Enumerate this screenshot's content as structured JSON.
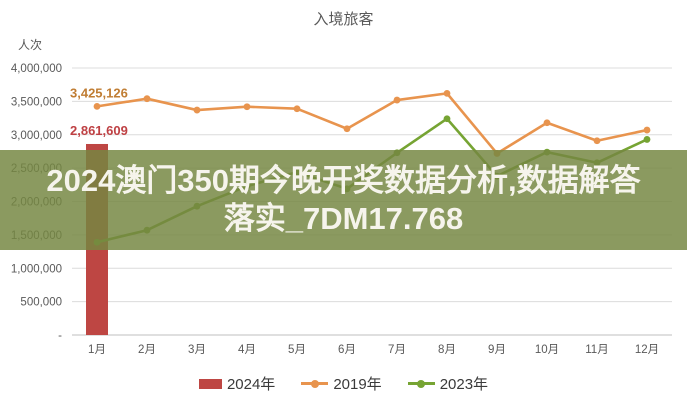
{
  "title": "入境旅客",
  "y_axis_unit": "人次",
  "banner": {
    "line1": "2024澳门350期今晚开奖数据分析,数据解答",
    "line2": "落实_7DM17.768",
    "background_color": "#758742",
    "text_color": "#F6F4EC"
  },
  "legend": {
    "items": [
      {
        "label": "2024年",
        "type": "bar",
        "color": "#BE4643"
      },
      {
        "label": "2019年",
        "type": "line",
        "color": "#E8944E"
      },
      {
        "label": "2023年",
        "type": "line",
        "color": "#76A433"
      }
    ]
  },
  "chart_data": {
    "type": "combo",
    "title": "入境旅客",
    "xlabel": "",
    "ylabel": "人次",
    "ylim": [
      0,
      4000000
    ],
    "y_tick_step": 500000,
    "y_tick_labels": [
      "4,000,000",
      "3,500,000",
      "3,000,000",
      "2,500,000",
      "2,000,000",
      "1,500,000",
      "1,000,000",
      "500,000",
      "-"
    ],
    "grid": true,
    "legend_position": "bottom",
    "categories": [
      "1月",
      "2月",
      "3月",
      "4月",
      "5月",
      "6月",
      "7月",
      "8月",
      "9月",
      "10月",
      "11月",
      "12月"
    ],
    "series": [
      {
        "name": "2024年",
        "type": "bar",
        "color": "#BE4643",
        "values": [
          2861609,
          null,
          null,
          null,
          null,
          null,
          null,
          null,
          null,
          null,
          null,
          null
        ]
      },
      {
        "name": "2019年",
        "type": "line",
        "color": "#E8944E",
        "values": [
          3425126,
          3540000,
          3370000,
          3420000,
          3390000,
          3090000,
          3520000,
          3620000,
          2720000,
          3180000,
          2910000,
          3070000
        ]
      },
      {
        "name": "2023年",
        "type": "line",
        "color": "#76A433",
        "values": [
          1390000,
          1570000,
          1930000,
          2230000,
          2440000,
          2190000,
          2730000,
          3240000,
          2380000,
          2740000,
          2580000,
          2930000
        ]
      }
    ],
    "annotations": [
      {
        "text": "3,425,126",
        "color": "#C07D33",
        "month_index": 0,
        "value": 3425126
      },
      {
        "text": "2,861,609",
        "color": "#BE4043",
        "month_index": 0,
        "value": 2861609
      }
    ],
    "grid_color": "#DCDCDC",
    "axis_line_color": "#BFBFBF"
  }
}
